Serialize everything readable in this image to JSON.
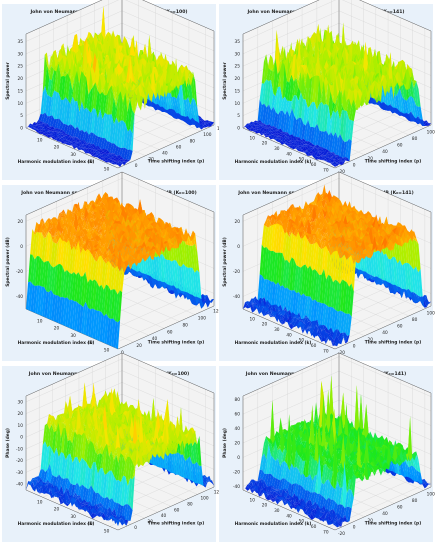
{
  "figure": {
    "background": "#ffffff",
    "panel_background": "#e8f1fa",
    "colormap": [
      "#0a14d4",
      "#0096ff",
      "#22e7e7",
      "#1ce81c",
      "#a6f000",
      "#ffe300",
      "#ff8a00",
      "#ff2a00"
    ]
  },
  "chart_data": [
    {
      "type": "surface",
      "title": "John von Neumann spectrogram of Gaussian signal (K₀=100)",
      "xlabel": "Harmonic modulation index (k)",
      "ylabel": "Time shifting index (p)",
      "zlabel": "Spectral power",
      "x_ticks": [
        "10",
        "20",
        "30",
        "40",
        "50"
      ],
      "y_ticks": [
        "0",
        "20",
        "40",
        "60",
        "80",
        "100",
        "120"
      ],
      "z_ticks": [
        "0",
        "5",
        "10",
        "15",
        "20",
        "25",
        "30",
        "35"
      ],
      "xlim": [
        0,
        55
      ],
      "ylim": [
        -20,
        120
      ],
      "zlim": [
        0,
        38
      ],
      "signal_band": [
        0,
        100
      ],
      "surface_base": 23,
      "surface_amplitude": 10,
      "surface_peak": 32,
      "edge_noise": 3,
      "seed": 11
    },
    {
      "type": "surface",
      "title": "John von Neumann spectrogram of Gaussian signal (K₀=141)",
      "xlabel": "Harmonic modulation index (k)",
      "ylabel": "Time shifting index (p)",
      "zlabel": "Spectral power",
      "x_ticks": [
        "10",
        "20",
        "30",
        "40",
        "50",
        "60",
        "70"
      ],
      "y_ticks": [
        "-20",
        "0",
        "20",
        "40",
        "60",
        "80",
        "100"
      ],
      "z_ticks": [
        "0",
        "5",
        "10",
        "15",
        "20",
        "25",
        "30",
        "35"
      ],
      "xlim": [
        0,
        75
      ],
      "ylim": [
        -20,
        110
      ],
      "zlim": [
        0,
        38
      ],
      "signal_band": [
        0,
        100
      ],
      "surface_base": 22,
      "surface_amplitude": 10,
      "surface_peak": 32,
      "edge_noise": 3,
      "seed": 23
    },
    {
      "type": "surface",
      "title": "John von Neumann spectrogram of Gaussian signal - in dB (K₀=100)",
      "xlabel": "Harmonic modulation index (k)",
      "ylabel": "Time shifting index (p)",
      "zlabel": "Spectral power (dB)",
      "x_ticks": [
        "10",
        "20",
        "30",
        "40",
        "50"
      ],
      "y_ticks": [
        "0",
        "20",
        "40",
        "60",
        "80",
        "100",
        "120"
      ],
      "z_ticks": [
        "-40",
        "-20",
        "0",
        "20"
      ],
      "xlim": [
        0,
        55
      ],
      "ylim": [
        0,
        125
      ],
      "zlim": [
        -50,
        25
      ],
      "signal_band": [
        0,
        110
      ],
      "surface_base": 12,
      "surface_amplitude": 9,
      "surface_peak": 20,
      "edge_noise": 18,
      "seed": 37
    },
    {
      "type": "surface",
      "title": "John von Neumann spectrogram of Gaussian signal - in dB (K₀=141)",
      "xlabel": "Harmonic modulation index (k)",
      "ylabel": "Time shifting index (p)",
      "zlabel": "Spectral power (dB)",
      "x_ticks": [
        "10",
        "20",
        "30",
        "40",
        "50",
        "60",
        "70"
      ],
      "y_ticks": [
        "-20",
        "0",
        "20",
        "40",
        "60",
        "80",
        "100"
      ],
      "z_ticks": [
        "-40",
        "-20",
        "0",
        "20"
      ],
      "xlim": [
        0,
        75
      ],
      "ylim": [
        -20,
        110
      ],
      "zlim": [
        -50,
        25
      ],
      "signal_band": [
        0,
        100
      ],
      "surface_base": 12,
      "surface_amplitude": 9,
      "surface_peak": 20,
      "edge_noise": 18,
      "seed": 41
    },
    {
      "type": "surface",
      "title": "John von Neumann phase surface of Gaussian signal (K₀=100)",
      "xlabel": "Harmonic modulation index (k)",
      "ylabel": "Time shifting index (p)",
      "zlabel": "Phase (deg)",
      "x_ticks": [
        "10",
        "20",
        "30",
        "40",
        "50"
      ],
      "y_ticks": [
        "0",
        "20",
        "40",
        "60",
        "80",
        "100",
        "120"
      ],
      "z_ticks": [
        "-40",
        "-30",
        "-20",
        "-10",
        "0",
        "10",
        "20",
        "30"
      ],
      "xlim": [
        0,
        55
      ],
      "ylim": [
        -20,
        125
      ],
      "zlim": [
        -45,
        35
      ],
      "signal_band": [
        0,
        110
      ],
      "surface_base": 4,
      "surface_amplitude": 14,
      "surface_peak": 28,
      "edge_noise": 20,
      "seed": 53
    },
    {
      "type": "surface",
      "title": "John von Neumann phase surface of Gaussian signal (K₀=141)",
      "xlabel": "Harmonic modulation index (k)",
      "ylabel": "Time shifting index (p)",
      "zlabel": "Phase (deg)",
      "x_ticks": [
        "10",
        "20",
        "30",
        "40",
        "50",
        "60",
        "70"
      ],
      "y_ticks": [
        "-20",
        "0",
        "20",
        "40",
        "60",
        "80",
        "100"
      ],
      "z_ticks": [
        "-40",
        "-20",
        "0",
        "20",
        "40",
        "60",
        "80"
      ],
      "xlim": [
        0,
        75
      ],
      "ylim": [
        -20,
        110
      ],
      "zlim": [
        -45,
        85
      ],
      "signal_band": [
        0,
        100
      ],
      "surface_base": 10,
      "surface_amplitude": 18,
      "surface_peak": 70,
      "edge_noise": 25,
      "seed": 67
    }
  ]
}
